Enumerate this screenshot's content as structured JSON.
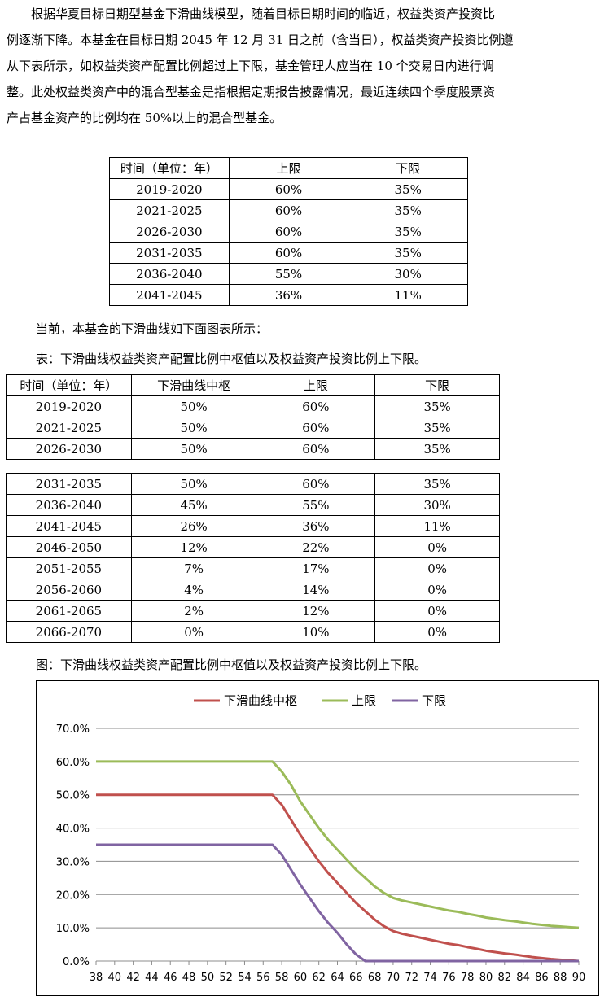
{
  "intro": {
    "lines": [
      "根据华夏目标日期型基金下滑曲线模型，随着目标日期时间的临近，权益类资产投资比",
      "例逐渐下降。本基金在目标日期 2045 年 12 月 31 日之前（含当日），权益类资产投资比例遵",
      "从下表所示，如权益类资产配置比例超过上下限，基金管理人应当在 10 个交易日内进行调",
      "整。此处权益类资产中的混合型基金是指根据定期报告披露情况，最近连续四个季度股票资",
      "产占基金资产的比例均在 50%以上的混合型基金。"
    ]
  },
  "table1": {
    "headers": [
      "时间（单位：年）",
      "上限",
      "下限"
    ],
    "rows": [
      [
        "2019-2020",
        "60%",
        "35%"
      ],
      [
        "2021-2025",
        "60%",
        "35%"
      ],
      [
        "2026-2030",
        "60%",
        "35%"
      ],
      [
        "2031-2035",
        "60%",
        "35%"
      ],
      [
        "2036-2040",
        "55%",
        "30%"
      ],
      [
        "2041-2045",
        "36%",
        "11%"
      ]
    ]
  },
  "current_text": "当前，本基金的下滑曲线如下面图表所示：",
  "table2_caption": "表：下滑曲线权益类资产配置比例中枢值以及权益资产投资比例上下限。",
  "table2": {
    "headers": [
      "时间（单位：年）",
      "下滑曲线中枢",
      "上限",
      "下限"
    ],
    "rows_a": [
      [
        "2019-2020",
        "50%",
        "60%",
        "35%"
      ],
      [
        "2021-2025",
        "50%",
        "60%",
        "35%"
      ],
      [
        "2026-2030",
        "50%",
        "60%",
        "35%"
      ]
    ],
    "rows_b": [
      [
        "2031-2035",
        "50%",
        "60%",
        "35%"
      ],
      [
        "2036-2040",
        "45%",
        "55%",
        "30%"
      ],
      [
        "2041-2045",
        "26%",
        "36%",
        "11%"
      ],
      [
        "2046-2050",
        "12%",
        "22%",
        "0%"
      ],
      [
        "2051-2055",
        "7%",
        "17%",
        "0%"
      ],
      [
        "2056-2060",
        "4%",
        "14%",
        "0%"
      ],
      [
        "2061-2065",
        "2%",
        "12%",
        "0%"
      ],
      [
        "2066-2070",
        "0%",
        "10%",
        "0%"
      ]
    ]
  },
  "figure_caption": "图：下滑曲线权益类资产配置比例中枢值以及权益资产投资比例上下限。",
  "chart_data": {
    "type": "line",
    "x": [
      38,
      39,
      40,
      41,
      42,
      43,
      44,
      45,
      46,
      47,
      48,
      49,
      50,
      51,
      52,
      53,
      54,
      55,
      56,
      57,
      58,
      59,
      60,
      61,
      62,
      63,
      64,
      65,
      66,
      67,
      68,
      69,
      70,
      71,
      72,
      73,
      74,
      75,
      76,
      77,
      78,
      79,
      80,
      81,
      82,
      83,
      84,
      85,
      86,
      87,
      88,
      89,
      90
    ],
    "x_ticks": [
      "38",
      "40",
      "42",
      "44",
      "46",
      "48",
      "50",
      "52",
      "54",
      "56",
      "58",
      "60",
      "62",
      "64",
      "66",
      "68",
      "70",
      "72",
      "74",
      "76",
      "78",
      "80",
      "82",
      "84",
      "86",
      "88",
      "90"
    ],
    "y_ticks": [
      "0.0%",
      "10.0%",
      "20.0%",
      "30.0%",
      "40.0%",
      "50.0%",
      "60.0%",
      "70.0%"
    ],
    "ylim": [
      0,
      70
    ],
    "grid": "horizontal",
    "legend_position": "top",
    "series": [
      {
        "name": "下滑曲线中枢",
        "color": "#c0504d",
        "values": [
          50,
          50,
          50,
          50,
          50,
          50,
          50,
          50,
          50,
          50,
          50,
          50,
          50,
          50,
          50,
          50,
          50,
          50,
          50,
          50,
          47,
          42.5,
          38,
          34,
          30,
          26.5,
          23.5,
          20.5,
          17.5,
          15,
          12.5,
          10.5,
          9,
          8.2,
          7.6,
          7,
          6.4,
          5.8,
          5.2,
          4.8,
          4.2,
          3.7,
          3.1,
          2.7,
          2.3,
          2,
          1.6,
          1.2,
          0.9,
          0.6,
          0.4,
          0.2,
          0
        ]
      },
      {
        "name": "上限",
        "color": "#9bbb59",
        "values": [
          60,
          60,
          60,
          60,
          60,
          60,
          60,
          60,
          60,
          60,
          60,
          60,
          60,
          60,
          60,
          60,
          60,
          60,
          60,
          60,
          57,
          53,
          48,
          44,
          40,
          36.5,
          33.5,
          30.5,
          27.5,
          25,
          22.5,
          20.5,
          19,
          18.2,
          17.6,
          17,
          16.4,
          15.8,
          15.2,
          14.8,
          14.2,
          13.7,
          13.1,
          12.7,
          12.3,
          12,
          11.6,
          11.2,
          10.9,
          10.6,
          10.4,
          10.2,
          10
        ]
      },
      {
        "name": "下限",
        "color": "#8064a2",
        "values": [
          35,
          35,
          35,
          35,
          35,
          35,
          35,
          35,
          35,
          35,
          35,
          35,
          35,
          35,
          35,
          35,
          35,
          35,
          35,
          35,
          32,
          27.5,
          23,
          19,
          15,
          11.5,
          8.5,
          5,
          2,
          0,
          0,
          0,
          0,
          0,
          0,
          0,
          0,
          0,
          0,
          0,
          0,
          0,
          0,
          0,
          0,
          0,
          0,
          0,
          0,
          0,
          0,
          0,
          0
        ]
      }
    ]
  }
}
